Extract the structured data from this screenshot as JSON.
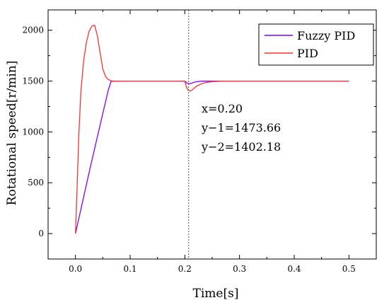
{
  "chart_data": {
    "type": "line",
    "title": "",
    "xlabel": "Time[s]",
    "ylabel": "Rotational speed[r/min]",
    "xlim": [
      -0.05,
      0.55
    ],
    "ylim": [
      -250,
      2200
    ],
    "x_ticks": [
      "0.0",
      "0.1",
      "0.2",
      "0.3",
      "0.4",
      "0.5"
    ],
    "x_tick_values": [
      0.0,
      0.1,
      0.2,
      0.3,
      0.4,
      0.5
    ],
    "y_ticks": [
      "0",
      "500",
      "1000",
      "1500",
      "2000"
    ],
    "y_tick_values": [
      0,
      500,
      1000,
      1500,
      2000
    ],
    "grid": false,
    "legend_position": "top-right",
    "series": [
      {
        "name": "Fuzzy PID",
        "color": "#8000ff",
        "x": [
          0,
          0.01,
          0.02,
          0.03,
          0.04,
          0.05,
          0.06,
          0.065,
          0.07,
          0.08,
          0.1,
          0.15,
          0.2,
          0.2,
          0.205,
          0.21,
          0.215,
          0.22,
          0.23,
          0.3,
          0.4,
          0.5
        ],
        "y": [
          0,
          240,
          480,
          720,
          950,
          1180,
          1410,
          1495,
          1500,
          1500,
          1500,
          1500,
          1500,
          1500,
          1476,
          1474,
          1485,
          1493,
          1499,
          1500,
          1500,
          1500
        ]
      },
      {
        "name": "PID",
        "color": "#ff3030",
        "x": [
          0,
          0.003,
          0.006,
          0.01,
          0.015,
          0.02,
          0.025,
          0.03,
          0.035,
          0.04,
          0.045,
          0.05,
          0.055,
          0.06,
          0.065,
          0.07,
          0.08,
          0.09,
          0.1,
          0.15,
          0.2,
          0.2,
          0.203,
          0.206,
          0.21,
          0.215,
          0.22,
          0.23,
          0.24,
          0.25,
          0.27,
          0.3,
          0.4,
          0.5
        ],
        "y": [
          0,
          450,
          950,
          1400,
          1700,
          1880,
          1990,
          2040,
          2050,
          1950,
          1780,
          1620,
          1545,
          1515,
          1503,
          1498,
          1499,
          1500,
          1500,
          1500,
          1500,
          1500,
          1440,
          1410,
          1402,
          1420,
          1445,
          1472,
          1488,
          1495,
          1499,
          1500,
          1500,
          1500
        ]
      }
    ],
    "marker_x": 0.207,
    "annotation": [
      "x=0.20",
      "y−1=1473.66",
      "y−2=1402.18"
    ]
  }
}
